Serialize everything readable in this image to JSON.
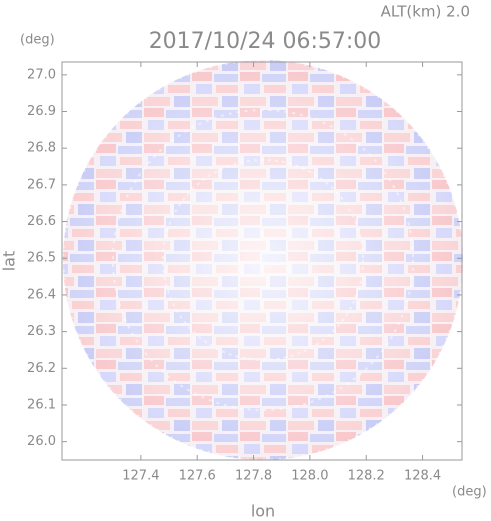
{
  "chart_data": {
    "type": "image",
    "title": "2017/10/24 06:57:00",
    "subtitle": "ALT(km) 2.0",
    "x_label": "lon",
    "y_label": "lat",
    "x_unit": "(deg)",
    "y_unit": "(deg)",
    "xlim": [
      127.12,
      128.54
    ],
    "ylim": [
      25.95,
      27.035
    ],
    "xticks": [
      127.4,
      127.6,
      127.8,
      {
        "value": 128,
        "label": "128.0"
      },
      128.2,
      128.4
    ],
    "yticks": [
      {
        "value": 26,
        "label": "26.0"
      },
      26.1,
      26.2,
      26.3,
      26.4,
      26.5,
      26.6,
      26.7,
      26.8,
      26.9,
      {
        "value": 27,
        "label": "27.0"
      }
    ]
  }
}
